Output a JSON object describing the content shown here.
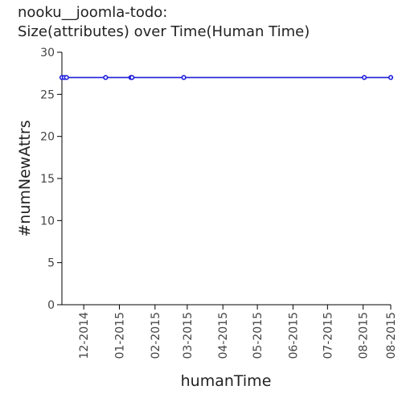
{
  "chart_data": {
    "type": "line",
    "title_lines": [
      "nooku__joomla-todo:",
      "Size(attributes) over Time(Human Time)"
    ],
    "xlabel": "humanTime",
    "ylabel": "#numNewAttrs",
    "x_scale": "time",
    "xlim": [
      "2014-11-12",
      "2015-08-25"
    ],
    "ylim": [
      0,
      30
    ],
    "y_ticks": [
      0,
      5,
      10,
      15,
      20,
      25,
      30
    ],
    "x_ticks": [
      {
        "date": "2014-12-01",
        "label": "12-2014"
      },
      {
        "date": "2015-01-01",
        "label": "01-2015"
      },
      {
        "date": "2015-02-01",
        "label": "02-2015"
      },
      {
        "date": "2015-03-01",
        "label": "03-2015"
      },
      {
        "date": "2015-04-01",
        "label": "04-2015"
      },
      {
        "date": "2015-05-01",
        "label": "05-2015"
      },
      {
        "date": "2015-06-01",
        "label": "06-2015"
      },
      {
        "date": "2015-07-01",
        "label": "07-2015"
      },
      {
        "date": "2015-08-01",
        "label": "08-2015"
      },
      {
        "date": "2015-08-25",
        "label": "08-2015"
      }
    ],
    "grid": false,
    "series": [
      {
        "color": "#1f1fdd",
        "points": [
          {
            "x": "2014-11-12",
            "y": 27
          },
          {
            "x": "2014-11-14",
            "y": 27
          },
          {
            "x": "2014-11-16",
            "y": 27
          },
          {
            "x": "2014-12-20",
            "y": 27
          },
          {
            "x": "2015-01-11",
            "y": 27
          },
          {
            "x": "2015-01-12",
            "y": 27
          },
          {
            "x": "2015-02-26",
            "y": 27
          },
          {
            "x": "2015-08-02",
            "y": 27
          },
          {
            "x": "2015-08-25",
            "y": 27
          }
        ]
      }
    ]
  }
}
